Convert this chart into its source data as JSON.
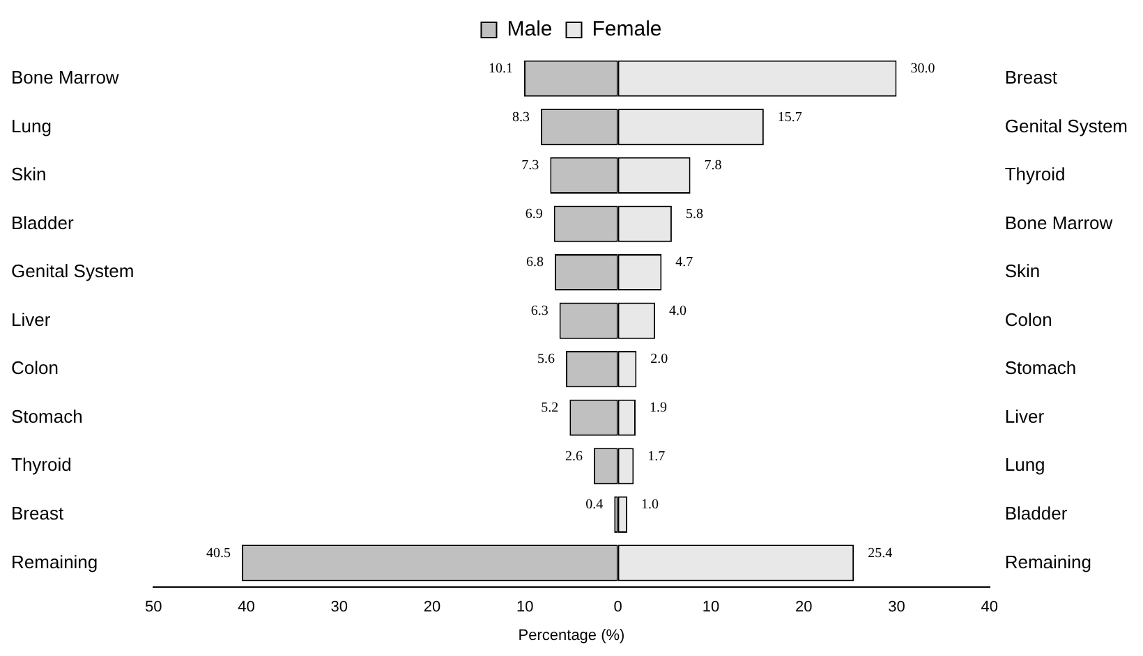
{
  "chart_data": {
    "type": "bar",
    "orientation": "horizontal",
    "categories": [
      "Bone Marrow",
      "Lung",
      "Skin",
      "Bladder",
      "Genital System",
      "Liver",
      "Colon",
      "Stomach",
      "Thyroid",
      "Breast",
      "Remaining"
    ],
    "y2_categories": [
      "Breast",
      "Genital System",
      "Thyroid",
      "Bone Marrow",
      "Skin",
      "Colon",
      "Stomach",
      "Liver",
      "Lung",
      "Bladder",
      "Remaining"
    ],
    "series": [
      {
        "name": "Male",
        "color": "#c0c0c0",
        "values": [
          10.1,
          8.3,
          7.3,
          6.9,
          6.8,
          6.3,
          5.6,
          5.2,
          2.6,
          0.4,
          40.5
        ],
        "base": [
          -10.1,
          -8.3,
          -7.3,
          -6.9,
          -6.8,
          -6.3,
          -5.6,
          -5.2,
          -2.6,
          -0.4,
          -40.5
        ],
        "value_labels": [
          "10.1",
          "8.3",
          "7.3",
          "6.9",
          "6.8",
          "6.3",
          "5.6",
          "5.2",
          "2.6",
          "0.4",
          "40.5"
        ]
      },
      {
        "name": "Female",
        "color": "#e8e8e8",
        "values": [
          30.0,
          15.7,
          7.8,
          5.8,
          4.7,
          4.0,
          2.0,
          1.9,
          1.7,
          1.0,
          25.4
        ],
        "value_labels": [
          "30.0",
          "15.7",
          "7.8",
          "5.8",
          "4.7",
          "4.0",
          "2.0",
          "1.9",
          "1.7",
          "1.0",
          "25.4"
        ]
      }
    ],
    "xlabel": "Percentage (%)",
    "xlim": [
      -50,
      40
    ],
    "xticks": [
      {
        "value": -50,
        "label": "50"
      },
      {
        "value": -40,
        "label": "40"
      },
      {
        "value": -30,
        "label": "30"
      },
      {
        "value": -20,
        "label": "20"
      },
      {
        "value": -10,
        "label": "10"
      },
      0,
      10,
      20,
      30,
      40
    ],
    "grid": false,
    "legend": "top"
  }
}
